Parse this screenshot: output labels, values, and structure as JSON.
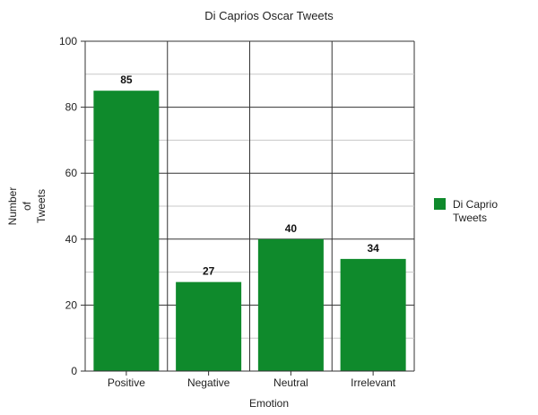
{
  "chart_data": {
    "type": "bar",
    "title": "Di Caprios Oscar Tweets",
    "xlabel": "Emotion",
    "ylabel": [
      "Number",
      "of",
      "Tweets"
    ],
    "categories": [
      "Positive",
      "Negative",
      "Neutral",
      "Irrelevant"
    ],
    "series": [
      {
        "name": "Di Caprio Tweets",
        "values": [
          85,
          27,
          40,
          34
        ]
      }
    ],
    "legend_lines": [
      "Di Caprio",
      "Tweets"
    ],
    "ylim": [
      0,
      100
    ],
    "yticks": [
      "0",
      "20",
      "40",
      "60",
      "80",
      "100"
    ],
    "grid": true,
    "legend": "right",
    "bar_color": "#0f8a2c"
  }
}
